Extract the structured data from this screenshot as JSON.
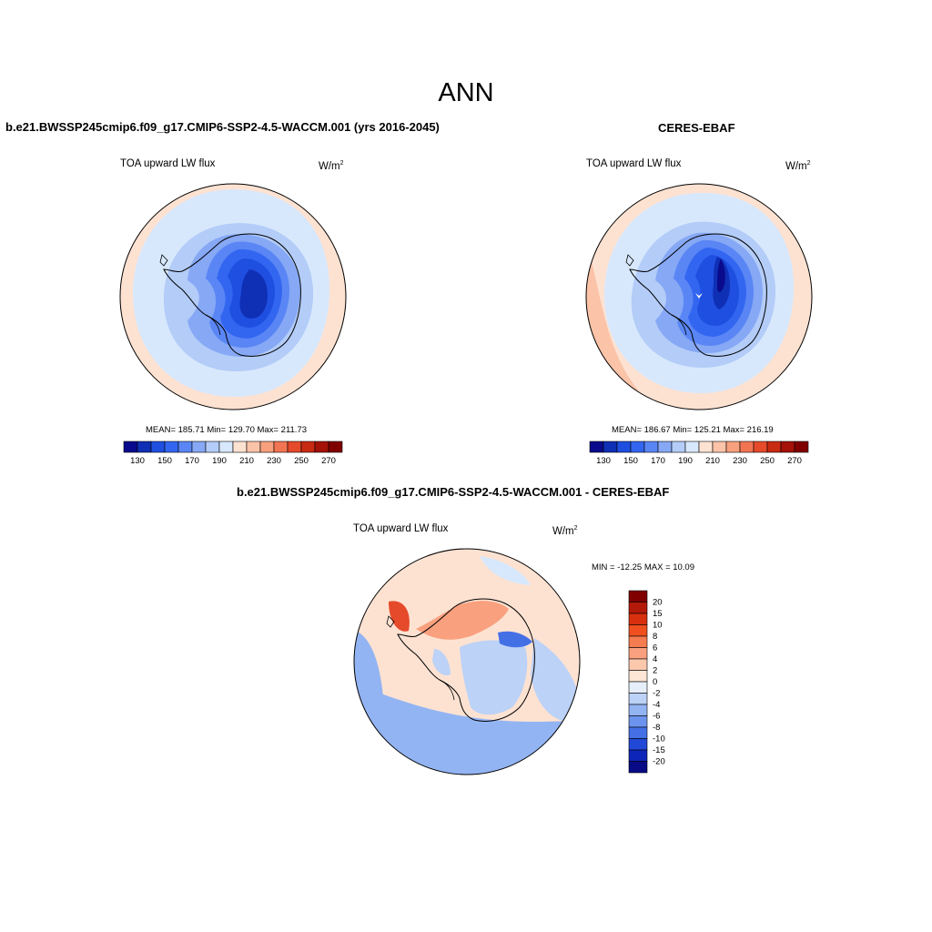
{
  "title": "ANN",
  "panels": {
    "model": {
      "heading": "b.e21.BWSSP245cmip6.f09_g17.CMIP6-SSP2-4.5-WACCM.001 (yrs 2016-2045)",
      "variable": "TOA upward LW flux",
      "units_base": "W/m",
      "units_exp": "2",
      "stats": "MEAN= 185.71  Min= 129.70  Max= 211.73"
    },
    "obs": {
      "heading": "CERES-EBAF",
      "variable": "TOA upward LW flux",
      "units_base": "W/m",
      "units_exp": "2",
      "stats": "MEAN= 186.67  Min= 125.21  Max= 216.19"
    },
    "diff": {
      "heading": "b.e21.BWSSP245cmip6.f09_g17.CMIP6-SSP2-4.5-WACCM.001 - CERES-EBAF",
      "variable": "TOA upward LW flux",
      "units_base": "W/m",
      "units_exp": "2",
      "stats": "MIN = -12.25 MAX =  10.09"
    }
  },
  "colorbars": {
    "field": {
      "colors": [
        "#0a0a8c",
        "#0f2fb5",
        "#1f4fe0",
        "#3366f0",
        "#5a86f5",
        "#86a8f5",
        "#b3ccf8",
        "#d8e8fc",
        "#fde2d2",
        "#fbc3a8",
        "#f7a07e",
        "#f27553",
        "#e54a2a",
        "#c82a12",
        "#a41208",
        "#800000"
      ],
      "labels": [
        "130",
        "150",
        "170",
        "190",
        "210",
        "230",
        "250",
        "270"
      ]
    },
    "diff": {
      "colors": [
        "#800000",
        "#b41a0a",
        "#d8300f",
        "#f0501f",
        "#f57b50",
        "#f9a07e",
        "#fbc8ae",
        "#fde6d6",
        "#e6eefa",
        "#bcd2f7",
        "#93b4f3",
        "#6c94ee",
        "#4470e6",
        "#2248d8",
        "#0d25b8",
        "#080b85"
      ],
      "labels": [
        "20",
        "15",
        "10",
        "8",
        "6",
        "4",
        "2",
        "0",
        "-2",
        "-4",
        "-6",
        "-8",
        "-10",
        "-15",
        "-20"
      ]
    }
  },
  "map_colors": {
    "outer_warm": "#fde2d2",
    "ocean_light": "#d8e8fc",
    "level_190": "#b3ccf8",
    "level_180": "#86a8f5",
    "level_170": "#5a86f5",
    "level_160": "#3366f0",
    "level_150": "#1f4fe0",
    "level_140": "#0f2fb5",
    "level_130": "#0a0a8c",
    "diff_neg_light": "#bcd2f7",
    "diff_neg": "#93b4f3",
    "diff_neg_strong": "#4470e6",
    "diff_pos": "#f9a07e",
    "diff_pos_strong": "#e54a2a"
  }
}
